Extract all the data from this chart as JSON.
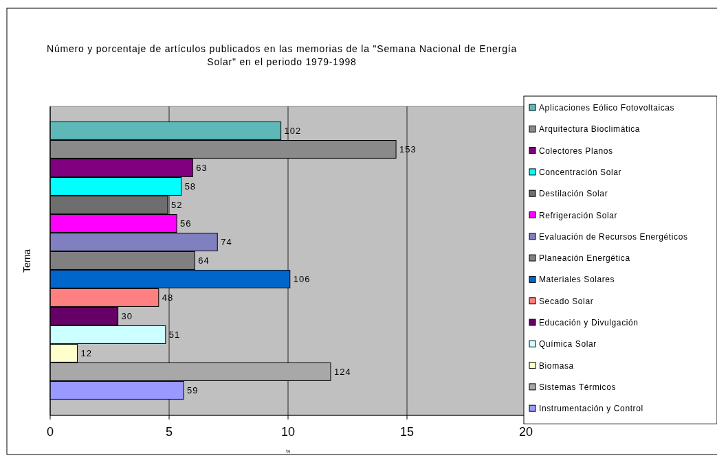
{
  "chart_data": {
    "type": "bar",
    "orientation": "horizontal",
    "title": "Número y porcentaje de artículos publicados en las memorias de la \"Semana Nacional de Energía Solar\" en el periodo 1979-1998",
    "xlabel": "%",
    "ylabel": "Tema",
    "categories": [
      null
    ],
    "xlim": [
      0,
      20
    ],
    "xticks": [
      0,
      5,
      10,
      15,
      20
    ],
    "grid": "x",
    "legend": "right",
    "series": [
      {
        "name": "Aplicaciones Eólico Fotovoltaicas",
        "color": "#5fb8b8",
        "values": [
          9.7
        ]
      },
      {
        "name": "Arquitectura Bioclimática",
        "color": "#8a8a8a",
        "values": [
          14.54
        ]
      },
      {
        "name": "Colectores Planos",
        "color": "#800080",
        "values": [
          5.99
        ]
      },
      {
        "name": "Concentración Solar",
        "color": "#00ffff",
        "values": [
          5.51
        ]
      },
      {
        "name": "Destilación Solar",
        "color": "#6e6e6e",
        "values": [
          4.94
        ]
      },
      {
        "name": "Refrigeración Solar",
        "color": "#ff00ff",
        "values": [
          5.32
        ]
      },
      {
        "name": "Evaluación de Recursos Energéticos",
        "color": "#8080c0",
        "values": [
          7.03
        ]
      },
      {
        "name": "Planeación Energética",
        "color": "#808080",
        "values": [
          6.08
        ]
      },
      {
        "name": "Materiales Solares",
        "color": "#0066cc",
        "values": [
          10.08
        ]
      },
      {
        "name": "Secado Solar",
        "color": "#ff8080",
        "values": [
          4.56
        ]
      },
      {
        "name": "Educación y Divulgación",
        "color": "#660066",
        "values": [
          2.85
        ]
      },
      {
        "name": "Química Solar",
        "color": "#ccffff",
        "values": [
          4.85
        ]
      },
      {
        "name": "Biomasa",
        "color": "#ffffcc",
        "values": [
          1.14
        ]
      },
      {
        "name": "Sistemas Térmicos",
        "color": "#a8a8a8",
        "values": [
          11.79
        ]
      },
      {
        "name": "Instrumentación y Control",
        "color": "#9999ff",
        "values": [
          5.61
        ]
      }
    ],
    "annotations": [
      {
        "text": "102",
        "x": 9.7
      },
      {
        "text": "153",
        "x": 14.54
      },
      {
        "text": "63",
        "x": 5.99
      },
      {
        "text": "58",
        "x": 5.51
      },
      {
        "text": "52",
        "x": 4.94
      },
      {
        "text": "56",
        "x": 5.32
      },
      {
        "text": "74",
        "x": 7.03
      },
      {
        "text": "64",
        "x": 6.08
      },
      {
        "text": "106",
        "x": 10.08
      },
      {
        "text": "48",
        "x": 4.56
      },
      {
        "text": "30",
        "x": 2.85
      },
      {
        "text": "51",
        "x": 4.85
      },
      {
        "text": "12",
        "x": 1.14
      },
      {
        "text": "124",
        "x": 11.79
      },
      {
        "text": "59",
        "x": 5.61
      }
    ]
  }
}
